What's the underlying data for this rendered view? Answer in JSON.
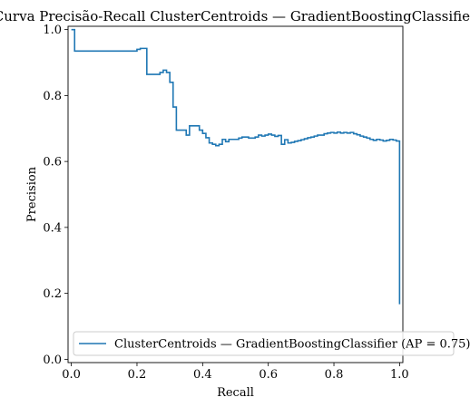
{
  "chart_data": {
    "type": "line",
    "title": "Curva Precisão-Recall ClusterCentroids — GradientBoostingClassifier",
    "xlabel": "Recall",
    "ylabel": "Precision",
    "xlim": [
      -0.01,
      1.01
    ],
    "ylim": [
      -0.01,
      1.01
    ],
    "x_ticks": [
      0.0,
      0.2,
      0.4,
      0.6,
      0.8,
      1.0
    ],
    "x_tick_labels": [
      "0.0",
      "0.2",
      "0.4",
      "0.6",
      "0.8",
      "1.0"
    ],
    "y_ticks": [
      0.0,
      0.2,
      0.4,
      0.6,
      0.8,
      1.0
    ],
    "y_tick_labels": [
      "0.0",
      "0.2",
      "0.4",
      "0.6",
      "0.8",
      "1.0"
    ],
    "grid": false,
    "drawstyle": "steps",
    "legend_position": "lower right",
    "series": [
      {
        "name": "ClusterCentroids — GradientBoostingClassifier (AP = 0.75)",
        "color": "#1f77b4",
        "recall": [
          1.0,
          1.0,
          0.99,
          0.98,
          0.97,
          0.96,
          0.95,
          0.94,
          0.93,
          0.92,
          0.91,
          0.9,
          0.89,
          0.88,
          0.87,
          0.86,
          0.85,
          0.84,
          0.83,
          0.82,
          0.81,
          0.8,
          0.79,
          0.78,
          0.77,
          0.76,
          0.75,
          0.74,
          0.73,
          0.72,
          0.71,
          0.7,
          0.69,
          0.68,
          0.67,
          0.66,
          0.65,
          0.64,
          0.63,
          0.62,
          0.61,
          0.6,
          0.59,
          0.58,
          0.57,
          0.56,
          0.55,
          0.54,
          0.53,
          0.52,
          0.51,
          0.5,
          0.49,
          0.48,
          0.47,
          0.46,
          0.45,
          0.44,
          0.43,
          0.42,
          0.41,
          0.4,
          0.39,
          0.38,
          0.37,
          0.36,
          0.35,
          0.34,
          0.33,
          0.32,
          0.31,
          0.3,
          0.29,
          0.28,
          0.27,
          0.26,
          0.25,
          0.24,
          0.23,
          0.22,
          0.21,
          0.2,
          0.19,
          0.01,
          0.0
        ],
        "precision": [
          0.167,
          0.664,
          0.662,
          0.665,
          0.667,
          0.664,
          0.662,
          0.665,
          0.667,
          0.664,
          0.667,
          0.671,
          0.674,
          0.677,
          0.681,
          0.684,
          0.688,
          0.686,
          0.688,
          0.686,
          0.689,
          0.686,
          0.688,
          0.686,
          0.684,
          0.68,
          0.68,
          0.677,
          0.674,
          0.672,
          0.669,
          0.666,
          0.663,
          0.661,
          0.658,
          0.656,
          0.666,
          0.652,
          0.679,
          0.676,
          0.68,
          0.683,
          0.68,
          0.677,
          0.68,
          0.674,
          0.671,
          0.671,
          0.674,
          0.674,
          0.671,
          0.667,
          0.667,
          0.667,
          0.66,
          0.667,
          0.652,
          0.648,
          0.652,
          0.656,
          0.672,
          0.685,
          0.695,
          0.708,
          0.708,
          0.708,
          0.68,
          0.695,
          0.695,
          0.695,
          0.765,
          0.84,
          0.87,
          0.877,
          0.87,
          0.864,
          0.864,
          0.864,
          0.864,
          0.943,
          0.943,
          0.94,
          0.935,
          0.935,
          1.0
        ]
      }
    ]
  }
}
